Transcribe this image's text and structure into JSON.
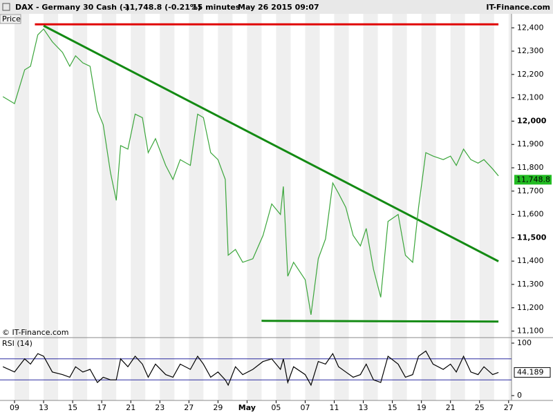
{
  "header": {
    "instrument": "DAX - Germany 30 Cash (-)",
    "quote": "11,748.8 (-0.21%)",
    "interval": "15 minutes",
    "timestamp": "May 26 2015 09:07",
    "brand": "IT-Finance.com"
  },
  "chart_data": [
    {
      "type": "line",
      "title": "Price",
      "credit": "© IT-Finance.com",
      "x": [
        0.2,
        1.0,
        1.7,
        2.1,
        2.6,
        3.0,
        3.6,
        4.3,
        4.8,
        5.2,
        5.7,
        6.2,
        6.7,
        7.1,
        7.6,
        8.0,
        8.3,
        8.8,
        9.3,
        9.8,
        10.2,
        10.7,
        11.4,
        11.9,
        12.4,
        13.1,
        13.6,
        14.0,
        14.5,
        15.0,
        15.5,
        15.7,
        16.2,
        16.7,
        17.4,
        18.1,
        18.7,
        19.3,
        19.5,
        19.8,
        20.2,
        21.0,
        21.4,
        21.9,
        22.4,
        22.9,
        23.3,
        23.8,
        24.3,
        24.8,
        25.2,
        25.7,
        26.2,
        26.7,
        27.4,
        27.9,
        28.4,
        28.8,
        29.3,
        29.8,
        30.5,
        31.0,
        31.4,
        31.9,
        32.4,
        32.9,
        33.3,
        33.9,
        34.3
      ],
      "series": [
        {
          "color": "#3aa53a",
          "values": [
            12105,
            12075,
            12220,
            12235,
            12370,
            12395,
            12340,
            12295,
            12235,
            12280,
            12250,
            12235,
            12045,
            11985,
            11780,
            11660,
            11895,
            11880,
            12030,
            12015,
            11865,
            11925,
            11810,
            11750,
            11835,
            11810,
            12030,
            12015,
            11865,
            11835,
            11750,
            11425,
            11450,
            11395,
            11410,
            11510,
            11645,
            11600,
            11720,
            11335,
            11395,
            11320,
            11170,
            11410,
            11495,
            11735,
            11690,
            11630,
            11510,
            11465,
            11540,
            11365,
            11245,
            11570,
            11600,
            11425,
            11395,
            11630,
            11865,
            11850,
            11835,
            11850,
            11810,
            11880,
            11835,
            11820,
            11835,
            11795,
            11765
          ]
        }
      ],
      "last_price": {
        "value": 11748.8,
        "label": "11,748.8",
        "color": "#22bb22"
      },
      "trendlines": [
        {
          "color": "#e00000",
          "x": [
            2.4,
            34.3
          ],
          "y": [
            12415,
            12415
          ]
        },
        {
          "color": "#138a13",
          "x": [
            3.0,
            34.3
          ],
          "y": [
            12409,
            11399
          ]
        },
        {
          "color": "#138a13",
          "x": [
            18.0,
            34.3
          ],
          "y": [
            11144,
            11141
          ]
        }
      ],
      "xlim": [
        0,
        35.2
      ],
      "ylim": [
        11075,
        12460
      ],
      "yticks": [
        {
          "value": 11100,
          "label": "11,100"
        },
        {
          "value": 11200,
          "label": "11,200"
        },
        {
          "value": 11300,
          "label": "11,300"
        },
        {
          "value": 11400,
          "label": "11,400"
        },
        {
          "value": 11500,
          "label": "11,500"
        },
        {
          "value": 11600,
          "label": "11,600"
        },
        {
          "value": 11700,
          "label": "11,700"
        },
        {
          "value": 11800,
          "label": "11,800"
        },
        {
          "value": 11900,
          "label": "11,900"
        },
        {
          "value": 12000,
          "label": "12,000"
        },
        {
          "value": 12100,
          "label": "12,100"
        },
        {
          "value": 12200,
          "label": "12,200"
        },
        {
          "value": 12300,
          "label": "12,300"
        },
        {
          "value": 12400,
          "label": "12,400"
        }
      ]
    },
    {
      "type": "line",
      "title": "RSI (14)",
      "x": [
        0.2,
        1.0,
        1.7,
        2.1,
        2.6,
        3.0,
        3.6,
        4.3,
        4.8,
        5.2,
        5.7,
        6.2,
        6.7,
        7.1,
        7.6,
        8.0,
        8.3,
        8.8,
        9.3,
        9.8,
        10.2,
        10.7,
        11.4,
        11.9,
        12.4,
        13.1,
        13.6,
        14.0,
        14.5,
        15.0,
        15.5,
        15.7,
        16.2,
        16.7,
        17.4,
        18.1,
        18.7,
        19.3,
        19.5,
        19.8,
        20.2,
        21.0,
        21.4,
        21.9,
        22.4,
        22.9,
        23.3,
        23.8,
        24.3,
        24.8,
        25.2,
        25.7,
        26.2,
        26.7,
        27.4,
        27.9,
        28.4,
        28.8,
        29.3,
        29.8,
        30.5,
        31.0,
        31.4,
        31.9,
        32.4,
        32.9,
        33.3,
        33.9,
        34.3
      ],
      "series": [
        {
          "color": "#000000",
          "values": [
            55,
            45,
            70,
            60,
            80,
            75,
            45,
            40,
            35,
            55,
            45,
            50,
            25,
            35,
            30,
            30,
            70,
            55,
            75,
            60,
            35,
            60,
            40,
            35,
            60,
            50,
            75,
            60,
            35,
            45,
            30,
            20,
            55,
            40,
            50,
            65,
            70,
            50,
            70,
            25,
            55,
            40,
            20,
            65,
            60,
            80,
            55,
            45,
            35,
            40,
            60,
            30,
            25,
            75,
            60,
            35,
            40,
            75,
            85,
            60,
            50,
            60,
            45,
            75,
            45,
            40,
            55,
            40,
            44.189
          ]
        }
      ],
      "levels": [
        30,
        70
      ],
      "level_color": "#2a2aa0",
      "xlim": [
        0,
        35.2
      ],
      "ylim": [
        -9.2,
        109.2
      ],
      "yticks": [
        0,
        100
      ],
      "xticks": [
        {
          "value": 1,
          "label": "09"
        },
        {
          "value": 3,
          "label": "13"
        },
        {
          "value": 5,
          "label": "15"
        },
        {
          "value": 7,
          "label": "17"
        },
        {
          "value": 9,
          "label": "21"
        },
        {
          "value": 11,
          "label": "23"
        },
        {
          "value": 13,
          "label": "27"
        },
        {
          "value": 15,
          "label": "29"
        },
        {
          "value": 17,
          "label": "May"
        },
        {
          "value": 19,
          "label": "05"
        },
        {
          "value": 21,
          "label": "07"
        },
        {
          "value": 23,
          "label": "11"
        },
        {
          "value": 25,
          "label": "13"
        },
        {
          "value": 27,
          "label": "15"
        },
        {
          "value": 29,
          "label": "19"
        },
        {
          "value": 31,
          "label": "21"
        },
        {
          "value": 33,
          "label": "25"
        },
        {
          "value": 35,
          "label": "27"
        }
      ]
    }
  ]
}
